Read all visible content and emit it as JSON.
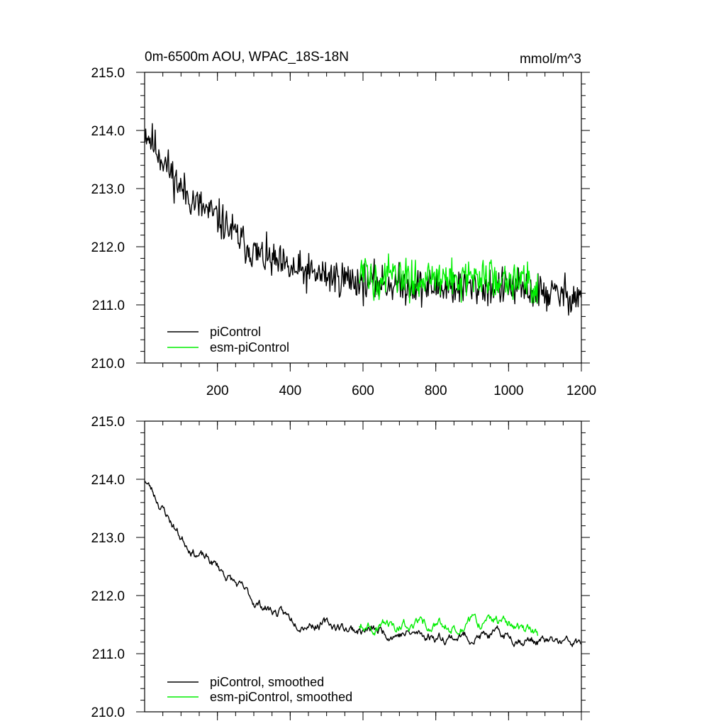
{
  "header": {
    "title": "0m-6500m AOU, WPAC_18S-18N",
    "units": "mmol/m^3"
  },
  "colors": {
    "piControl": "#000000",
    "esm_piControl": "#00ee00"
  },
  "chart_data": [
    {
      "type": "line",
      "panel": "top",
      "title": "0m-6500m AOU, WPAC_18S-18N",
      "units_label": "mmol/m^3",
      "xlim": [
        0,
        1200
      ],
      "ylim": [
        210.0,
        215.0
      ],
      "xticks": [
        200,
        400,
        600,
        800,
        1000,
        1200
      ],
      "xtick_labels": [
        "200",
        "400",
        "600",
        "800",
        "1000",
        "1200"
      ],
      "yticks": [
        210.0,
        211.0,
        212.0,
        213.0,
        214.0,
        215.0
      ],
      "ytick_labels": [
        "210.0",
        "211.0",
        "212.0",
        "213.0",
        "214.0",
        "215.0"
      ],
      "grid": false,
      "legend_position": "bottom-left",
      "series": [
        {
          "name": "piControl",
          "color": "#000000",
          "x_range": [
            1,
            1200
          ],
          "trend_knots_x": [
            1,
            50,
            100,
            150,
            200,
            250,
            300,
            350,
            400,
            450,
            500,
            550,
            600,
            700,
            800,
            900,
            1000,
            1100,
            1200
          ],
          "trend_knots_y": [
            214.0,
            213.5,
            213.0,
            212.7,
            212.5,
            212.2,
            211.9,
            211.75,
            211.6,
            211.55,
            211.5,
            211.45,
            211.4,
            211.35,
            211.3,
            211.3,
            211.3,
            211.2,
            211.15
          ],
          "noise_amplitude": 0.28,
          "range_approx": [
            210.5,
            214.4
          ]
        },
        {
          "name": "esm-piControl",
          "color": "#00ee00",
          "x_range": [
            590,
            1080
          ],
          "trend_knots_x": [
            590,
            700,
            800,
            900,
            1000,
            1080
          ],
          "trend_knots_y": [
            211.5,
            211.45,
            211.45,
            211.45,
            211.5,
            211.3
          ],
          "noise_amplitude": 0.3,
          "range_approx": [
            210.7,
            212.15
          ]
        }
      ]
    },
    {
      "type": "line",
      "panel": "bottom",
      "xlim": [
        0,
        1200
      ],
      "ylim": [
        210.0,
        215.0
      ],
      "xticks": [
        200,
        400,
        600,
        800,
        1000,
        1200
      ],
      "yticks": [
        210.0,
        211.0,
        212.0,
        213.0,
        214.0,
        215.0
      ],
      "ytick_labels": [
        "210.0",
        "211.0",
        "212.0",
        "213.0",
        "214.0",
        "215.0"
      ],
      "grid": false,
      "legend_position": "bottom-left",
      "series": [
        {
          "name": "piControl, smoothed",
          "color": "#000000",
          "x_range": [
            1,
            1200
          ],
          "trend_knots_x": [
            1,
            50,
            100,
            150,
            200,
            250,
            300,
            350,
            400,
            450,
            500,
            550,
            600,
            700,
            800,
            900,
            1000,
            1100,
            1200
          ],
          "trend_knots_y": [
            214.0,
            213.5,
            213.0,
            212.7,
            212.5,
            212.2,
            211.9,
            211.75,
            211.6,
            211.55,
            211.5,
            211.45,
            211.4,
            211.35,
            211.3,
            211.3,
            211.3,
            211.2,
            211.15
          ],
          "noise_amplitude": 0.12,
          "range_approx": [
            211.0,
            214.05
          ]
        },
        {
          "name": "esm-piControl, smoothed",
          "color": "#00ee00",
          "x_range": [
            590,
            1080
          ],
          "trend_knots_x": [
            590,
            700,
            800,
            900,
            1000,
            1080
          ],
          "trend_knots_y": [
            211.5,
            211.5,
            211.5,
            211.5,
            211.55,
            211.3
          ],
          "noise_amplitude": 0.13,
          "range_approx": [
            211.05,
            211.85
          ]
        }
      ]
    }
  ]
}
